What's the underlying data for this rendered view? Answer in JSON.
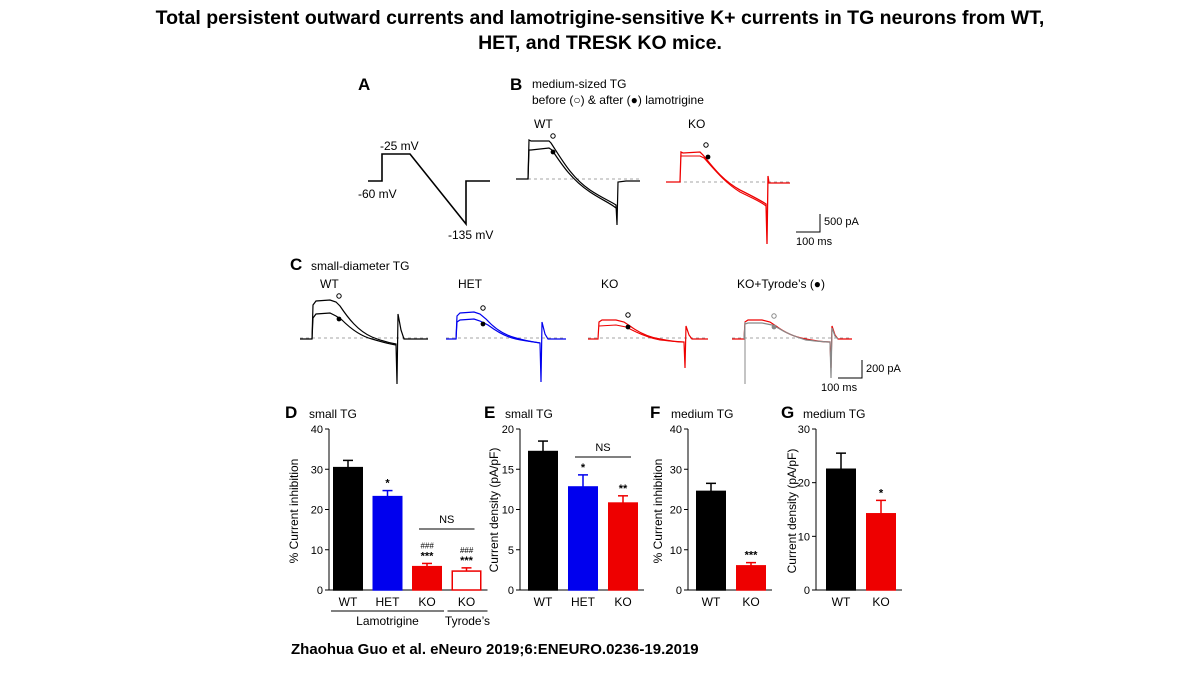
{
  "title_line1": "Total persistent outward currents and lamotrigine-sensitive K+ currents in TG neurons from WT,",
  "title_line2": "HET, and TRESK KO mice.",
  "citation": "Zhaohua Guo et al. eNeuro 2019;6:ENEURO.0236-19.2019",
  "colors": {
    "wt": "#000000",
    "het": "#0000ee",
    "ko": "#ee0000",
    "tyrode": "#888888"
  },
  "panel_a": {
    "label": "A",
    "hold": "-60 mV",
    "step": "-25 mV",
    "ramp_end": "-135 mV"
  },
  "panel_b": {
    "label": "B",
    "subtitle1": "medium-sized TG",
    "subtitle2": "before (○) & after (●) lamotrigine",
    "traces": [
      "WT",
      "KO"
    ],
    "scale_current": "500 pA",
    "scale_time": "100 ms"
  },
  "panel_c": {
    "label": "C",
    "subtitle": "small-diameter TG",
    "traces": [
      "WT",
      "HET",
      "KO",
      "KO+Tyrode’s (●)"
    ],
    "scale_current": "200 pA",
    "scale_time": "100 ms"
  },
  "chart_data": [
    {
      "panel": "D",
      "type": "bar",
      "title": "small TG",
      "ylabel": "% Current inhibition",
      "ylim": [
        0,
        40
      ],
      "yticks": [
        0,
        10,
        20,
        30,
        40
      ],
      "categories": [
        "WT",
        "HET",
        "KO",
        "KO"
      ],
      "values": [
        30.4,
        23.2,
        5.8,
        4.7
      ],
      "errors": [
        1.8,
        1.5,
        0.8,
        0.8
      ],
      "bar_colors": [
        "#000000",
        "#0000ee",
        "#ee0000",
        "#ffffff"
      ],
      "bar_edges": [
        "#000000",
        "#0000ee",
        "#ee0000",
        "#ee0000"
      ],
      "sig_above": [
        "",
        "*",
        "***",
        "***"
      ],
      "sig_hash": [
        "",
        "",
        "###",
        "###"
      ],
      "bracket_label": "NS",
      "groups": [
        "Lamotrigine",
        "Tyrode’s"
      ]
    },
    {
      "panel": "E",
      "type": "bar",
      "title": "small TG",
      "ylabel": "Current density (pA/pF)",
      "ylim": [
        0,
        20
      ],
      "yticks": [
        0,
        5,
        10,
        15,
        20
      ],
      "categories": [
        "WT",
        "HET",
        "KO"
      ],
      "values": [
        17.2,
        12.8,
        10.8
      ],
      "errors": [
        1.3,
        1.5,
        0.9
      ],
      "bar_colors": [
        "#000000",
        "#0000ee",
        "#ee0000"
      ],
      "bar_edges": [
        "#000000",
        "#0000ee",
        "#ee0000"
      ],
      "sig_above": [
        "",
        "*",
        "**"
      ],
      "bracket_label": "NS"
    },
    {
      "panel": "F",
      "type": "bar",
      "title": "medium TG",
      "ylabel": "% Current inhibition",
      "ylim": [
        0,
        40
      ],
      "yticks": [
        0,
        10,
        20,
        30,
        40
      ],
      "categories": [
        "WT",
        "KO"
      ],
      "values": [
        24.5,
        6.0
      ],
      "errors": [
        2.0,
        0.8
      ],
      "bar_colors": [
        "#000000",
        "#ee0000"
      ],
      "bar_edges": [
        "#000000",
        "#ee0000"
      ],
      "sig_above": [
        "",
        "***"
      ]
    },
    {
      "panel": "G",
      "type": "bar",
      "title": "medium TG",
      "ylabel": "Current density (pA/pF)",
      "ylim": [
        0,
        30
      ],
      "yticks": [
        0,
        10,
        20,
        30
      ],
      "categories": [
        "WT",
        "KO"
      ],
      "values": [
        22.5,
        14.2
      ],
      "errors": [
        3.0,
        2.5
      ],
      "bar_colors": [
        "#000000",
        "#ee0000"
      ],
      "bar_edges": [
        "#000000",
        "#ee0000"
      ],
      "sig_above": [
        "",
        "*"
      ]
    }
  ]
}
